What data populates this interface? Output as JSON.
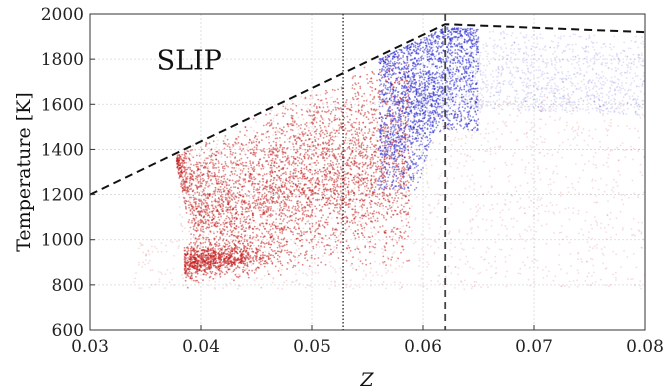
{
  "chart_data": {
    "type": "scatter",
    "title": "",
    "xlabel": "Z",
    "ylabel": "Temperature [K]",
    "xlim": [
      0.03,
      0.08
    ],
    "ylim": [
      600,
      2000
    ],
    "x_ticks": [
      "0.03",
      "0.04",
      "0.05",
      "0.06",
      "0.07",
      "0.08"
    ],
    "y_ticks": [
      "600",
      "800",
      "1000",
      "1200",
      "1400",
      "1600",
      "1800",
      "2000"
    ],
    "grid": true,
    "annotations": [
      {
        "text": "SLIP",
        "x": 0.036,
        "y": 1755
      }
    ],
    "colors": {
      "red_points": "#c41e1e",
      "blue_points": "#2a2ad0"
    },
    "reference_lines": {
      "equilibrium_dashed": {
        "x": [
          0.03,
          0.062,
          0.08
        ],
        "y": [
          1200,
          1955,
          1920
        ]
      },
      "stoichiometric_dashed_vertical": {
        "x": 0.062
      },
      "dotted_vertical": {
        "x": 0.0528
      }
    },
    "series": [
      {
        "color": "red",
        "points_sample": [
          [
            0.038,
            880
          ],
          [
            0.039,
            900
          ],
          [
            0.04,
            950
          ],
          [
            0.041,
            1050
          ],
          [
            0.042,
            1150
          ],
          [
            0.043,
            1250
          ],
          [
            0.044,
            1350
          ],
          [
            0.045,
            1420
          ],
          [
            0.047,
            1500
          ],
          [
            0.049,
            1560
          ],
          [
            0.051,
            1620
          ],
          [
            0.053,
            1680
          ],
          [
            0.055,
            1740
          ],
          [
            0.057,
            1790
          ],
          [
            0.059,
            1820
          ],
          [
            0.045,
            1200
          ],
          [
            0.05,
            1300
          ],
          [
            0.055,
            1300
          ],
          [
            0.06,
            1200
          ],
          [
            0.065,
            1100
          ],
          [
            0.07,
            1000
          ],
          [
            0.075,
            900
          ],
          [
            0.04,
            1200
          ],
          [
            0.042,
            1000
          ],
          [
            0.048,
            1050
          ]
        ]
      },
      {
        "color": "blue",
        "points_sample": [
          [
            0.055,
            1550
          ],
          [
            0.056,
            1250
          ],
          [
            0.057,
            1400
          ],
          [
            0.058,
            1650
          ],
          [
            0.059,
            1780
          ],
          [
            0.06,
            1850
          ],
          [
            0.061,
            1890
          ],
          [
            0.062,
            1900
          ],
          [
            0.063,
            1880
          ],
          [
            0.064,
            1850
          ],
          [
            0.066,
            1800
          ],
          [
            0.068,
            1780
          ],
          [
            0.07,
            1760
          ],
          [
            0.072,
            1740
          ],
          [
            0.075,
            1700
          ],
          [
            0.078,
            1680
          ],
          [
            0.08,
            1660
          ],
          [
            0.056,
            1750
          ],
          [
            0.058,
            1500
          ],
          [
            0.06,
            1700
          ]
        ]
      }
    ]
  }
}
